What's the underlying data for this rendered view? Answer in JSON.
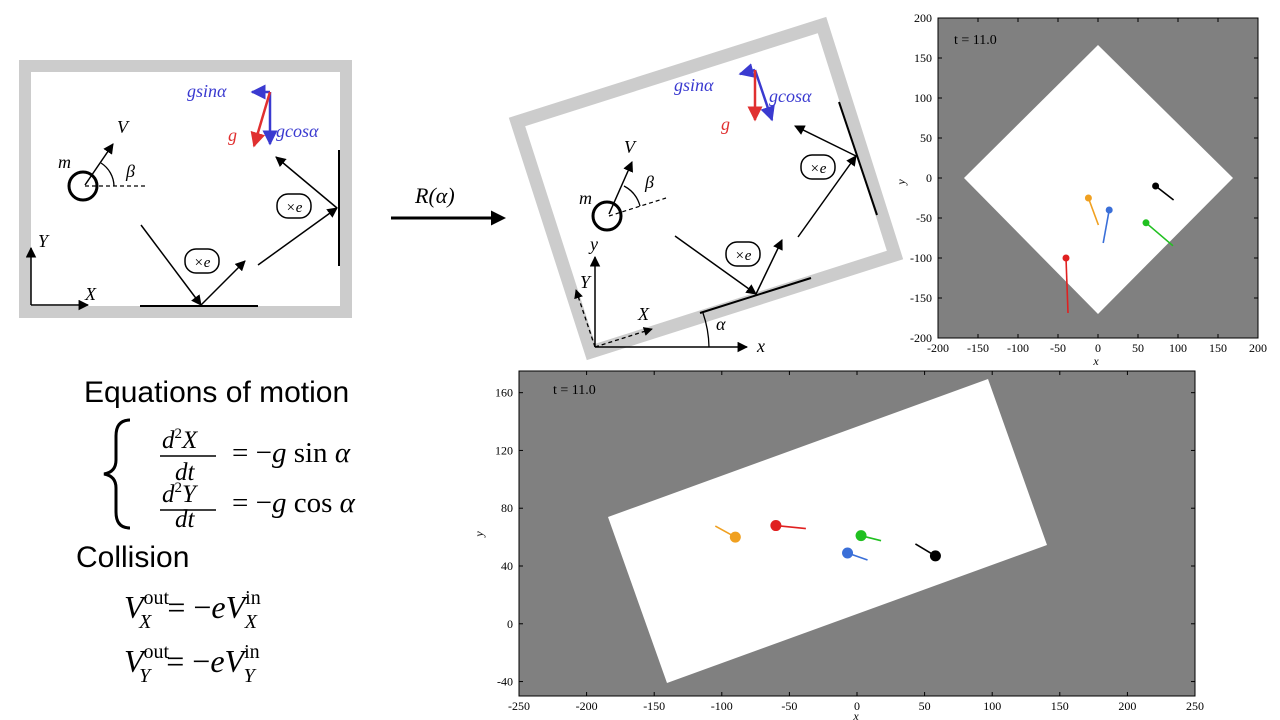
{
  "diagram_left": {
    "mass": "m",
    "velocity": "V",
    "angle": "β",
    "g": "g",
    "gsin": "gsinα",
    "gcos": "gcosα",
    "axis_x": "X",
    "axis_y": "Y",
    "bounce": "×e"
  },
  "rotation_label": "R(α)",
  "diagram_right": {
    "mass": "m",
    "velocity": "V",
    "angle": "β",
    "g": "g",
    "gsin": "gsinα",
    "gcos": "gcosα",
    "axis_X": "X",
    "axis_Y": "Y",
    "axis_x": "x",
    "axis_y": "y",
    "alpha": "α",
    "bounce": "×e"
  },
  "equations": {
    "title": "Equations of motion",
    "collision": "Collision"
  },
  "sim_top": {
    "time": "t = 11.0",
    "xlabel": "x",
    "ylabel": "y",
    "xticks": [
      "-200",
      "-150",
      "-100",
      "-50",
      "0",
      "50",
      "100",
      "150",
      "200"
    ],
    "yticks": [
      "200",
      "150",
      "100",
      "50",
      "0",
      "-50",
      "-100",
      "-150",
      "-200"
    ]
  },
  "sim_bottom": {
    "time": "t = 11.0",
    "xlabel": "x",
    "ylabel": "y",
    "xticks": [
      "-250",
      "-200",
      "-150",
      "-100",
      "-50",
      "0",
      "50",
      "100",
      "150",
      "200",
      "250"
    ],
    "yticks": [
      "160",
      "120",
      "80",
      "40",
      "0",
      "-40"
    ]
  },
  "colors": {
    "background": "#808080",
    "box": "#ffffff",
    "frame": "#cccccc",
    "gravity": "#e03030",
    "components": "#3a3ad0",
    "red": "#e02020",
    "orange": "#f0a020",
    "blue": "#3a6fd8",
    "green": "#20c020",
    "black": "#000000"
  },
  "chart_data": [
    {
      "type": "scatter",
      "title": "",
      "xlabel": "x",
      "ylabel": "y",
      "xlim": [
        -200,
        200
      ],
      "ylim": [
        -200,
        200
      ],
      "points": [
        {
          "color": "red",
          "x": -40,
          "y": -100
        },
        {
          "color": "orange",
          "x": -12,
          "y": -25
        },
        {
          "color": "blue",
          "x": 14,
          "y": -40
        },
        {
          "color": "green",
          "x": 60,
          "y": -56
        },
        {
          "color": "black",
          "x": 72,
          "y": -10
        }
      ]
    },
    {
      "type": "scatter",
      "title": "",
      "xlabel": "x",
      "ylabel": "y",
      "xlim": [
        -250,
        250
      ],
      "ylim": [
        -50,
        175
      ],
      "points": [
        {
          "color": "orange",
          "x": -90,
          "y": 60
        },
        {
          "color": "red",
          "x": -60,
          "y": 68
        },
        {
          "color": "green",
          "x": 3,
          "y": 61
        },
        {
          "color": "blue",
          "x": -7,
          "y": 49
        },
        {
          "color": "black",
          "x": 58,
          "y": 47
        }
      ]
    }
  ]
}
